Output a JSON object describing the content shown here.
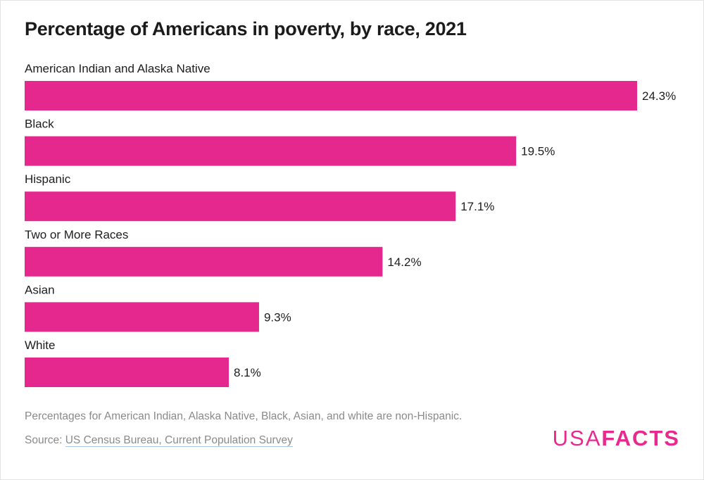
{
  "header": {
    "title": "Percentage of Americans in poverty, by race, 2021"
  },
  "chart_data": {
    "type": "bar",
    "orientation": "horizontal",
    "categories": [
      "American Indian and Alaska Native",
      "Black",
      "Hispanic",
      "Two or More Races",
      "Asian",
      "White"
    ],
    "values": [
      24.3,
      19.5,
      17.1,
      14.2,
      9.3,
      8.1
    ],
    "value_labels": [
      "24.3%",
      "19.5%",
      "17.1%",
      "14.2%",
      "9.3%",
      "8.1%"
    ],
    "unit": "%",
    "bar_color": "#e4288d",
    "xlim": [
      0,
      24.3
    ],
    "grid": false,
    "legend": "none"
  },
  "footer": {
    "note": "Percentages for American Indian, Alaska Native, Black, Asian, and white are non-Hispanic.",
    "source_prefix": "Source: ",
    "source_link": "US Census Bureau, Current Population Survey",
    "logo_usa": "USA",
    "logo_facts": "FACTS"
  },
  "colors": {
    "accent": "#e4288d",
    "muted_text": "#8a8a8a"
  }
}
